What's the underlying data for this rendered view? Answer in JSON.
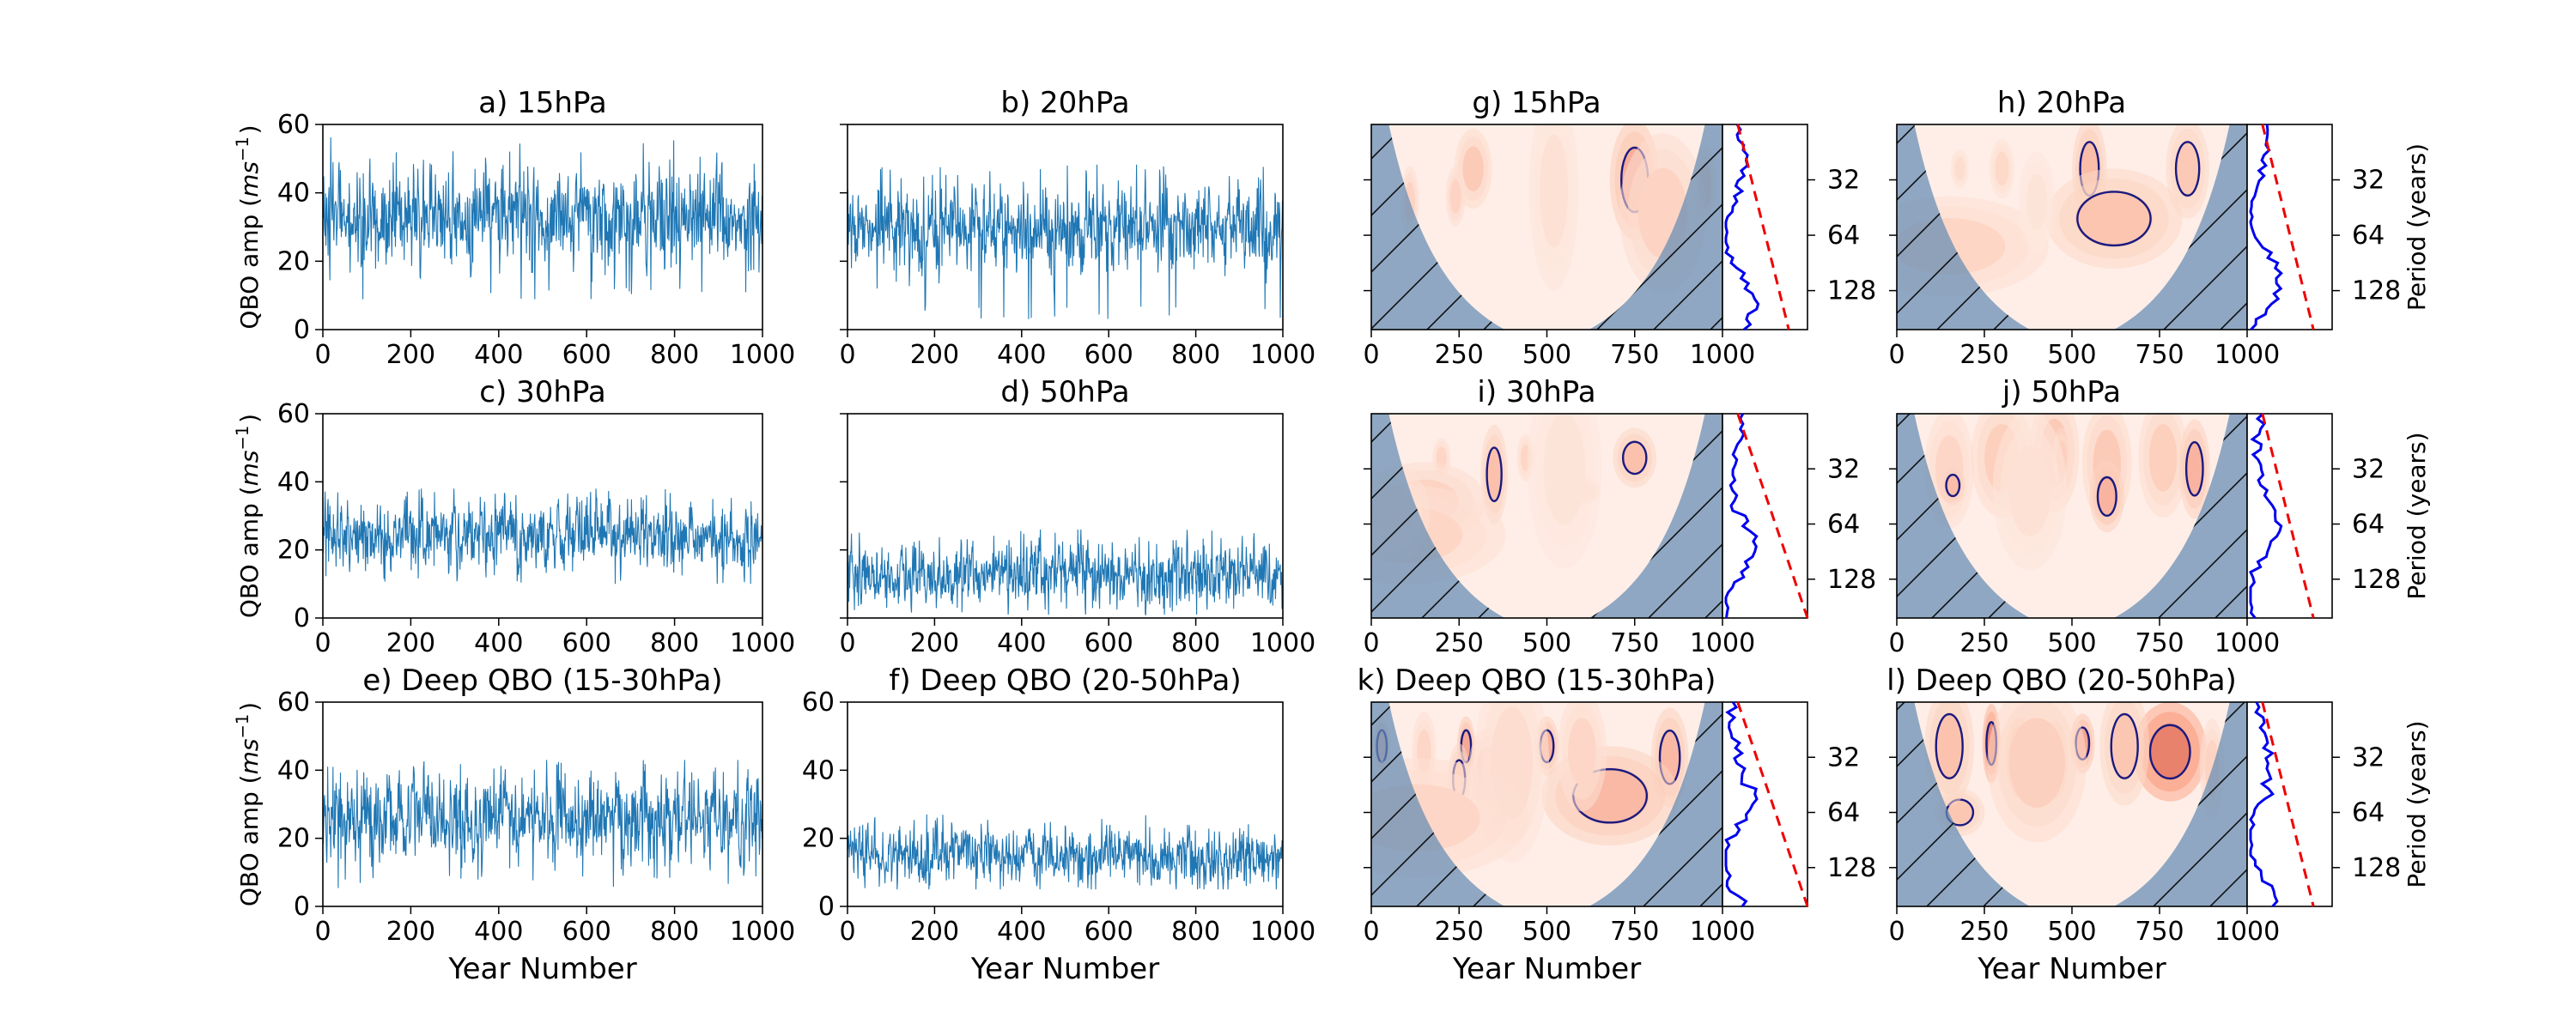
{
  "chart_data": {
    "type": "line",
    "timeseries_panels": [
      {
        "id": "a",
        "title": "a) 15hPa",
        "xlabel": "",
        "ylabel": "QBO amp ($ms^{-1}$)",
        "xlim": [
          0,
          1000
        ],
        "ylim": [
          0,
          60
        ],
        "mean": 33,
        "spread": 7,
        "min": 8,
        "max": 57,
        "color": "#1f77b4"
      },
      {
        "id": "b",
        "title": "b) 20hPa",
        "xlabel": "",
        "ylabel": "",
        "xlim": [
          0,
          1000
        ],
        "ylim": [
          0,
          60
        ],
        "mean": 30,
        "spread": 6,
        "min": 3,
        "max": 49,
        "color": "#1f77b4"
      },
      {
        "id": "c",
        "title": "c) 30hPa",
        "xlabel": "",
        "ylabel": "QBO amp ($ms^{-1}$)",
        "xlim": [
          0,
          1000
        ],
        "ylim": [
          0,
          60
        ],
        "mean": 24,
        "spread": 5,
        "min": 10,
        "max": 38,
        "color": "#1f77b4"
      },
      {
        "id": "d",
        "title": "d) 50hPa",
        "xlabel": "",
        "ylabel": "",
        "xlim": [
          0,
          1000
        ],
        "ylim": [
          0,
          60
        ],
        "mean": 13,
        "spread": 4.5,
        "min": 1,
        "max": 26,
        "color": "#1f77b4"
      },
      {
        "id": "e",
        "title": "e) Deep QBO (15-30hPa)",
        "xlabel": "Year Number",
        "ylabel": "QBO amp ($ms^{-1}$)",
        "xlim": [
          0,
          1000
        ],
        "ylim": [
          0,
          60
        ],
        "mean": 26,
        "spread": 6,
        "min": 5,
        "max": 43,
        "color": "#1f77b4"
      },
      {
        "id": "f",
        "title": "f) Deep QBO (20-50hPa)",
        "xlabel": "Year Number",
        "ylabel": "",
        "xlim": [
          0,
          1000
        ],
        "ylim": [
          0,
          60
        ],
        "mean": 15,
        "spread": 4,
        "min": 5,
        "max": 27,
        "color": "#1f77b4"
      }
    ],
    "wavelet_panels": [
      {
        "id": "g",
        "title": "g) 15hPa",
        "xlabel": "",
        "period_label": "",
        "intensity": 0.55,
        "blobs": [
          [
            110,
            1.6,
            14,
            0.18,
            0.5
          ],
          [
            290,
            1.0,
            30,
            0.2,
            0.6
          ],
          [
            240,
            1.5,
            16,
            0.15,
            0.5
          ],
          [
            750,
            1.2,
            40,
            0.3,
            0.9
          ],
          [
            850,
            1.7,
            14,
            0.15,
            0.45
          ],
          [
            950,
            1.3,
            18,
            0.2,
            0.6
          ],
          [
            830,
            1.8,
            70,
            0.4,
            0.5
          ],
          [
            520,
            1.4,
            40,
            0.5,
            0.3
          ]
        ]
      },
      {
        "id": "h",
        "title": "h) 20hPa",
        "xlabel": "",
        "period_label": "Period (years)",
        "intensity": 0.5,
        "blobs": [
          [
            180,
            1.0,
            10,
            0.1,
            0.4
          ],
          [
            550,
            1.0,
            28,
            0.25,
            0.85
          ],
          [
            830,
            1.0,
            35,
            0.25,
            0.7
          ],
          [
            300,
            1.0,
            20,
            0.15,
            0.45
          ],
          [
            620,
            1.9,
            110,
            0.25,
            0.75
          ],
          [
            150,
            2.4,
            160,
            0.25,
            0.5
          ],
          [
            400,
            1.6,
            30,
            0.25,
            0.25
          ]
        ]
      },
      {
        "id": "i",
        "title": "i) 30hPa",
        "xlabel": "",
        "period_label": "",
        "intensity": 0.5,
        "blobs": [
          [
            200,
            1.0,
            12,
            0.1,
            0.5
          ],
          [
            350,
            1.3,
            22,
            0.25,
            0.8
          ],
          [
            440,
            1.0,
            10,
            0.12,
            0.5
          ],
          [
            750,
            1.0,
            35,
            0.15,
            0.8
          ],
          [
            600,
            1.6,
            30,
            0.07,
            0.55
          ],
          [
            150,
            1.8,
            100,
            0.2,
            0.55
          ],
          [
            100,
            2.4,
            160,
            0.25,
            0.5
          ],
          [
            60,
            2.0,
            60,
            0.25,
            0.45
          ],
          [
            550,
            1.2,
            60,
            0.5,
            0.25
          ]
        ]
      },
      {
        "id": "j",
        "title": "j) 50hPa",
        "xlabel": "",
        "period_label": "Period (years)",
        "intensity": 0.55,
        "blobs": [
          [
            150,
            1.2,
            40,
            0.3,
            0.45
          ],
          [
            300,
            1.0,
            50,
            0.3,
            0.55
          ],
          [
            450,
            0.9,
            40,
            0.3,
            0.6
          ],
          [
            600,
            1.1,
            40,
            0.3,
            0.6
          ],
          [
            760,
            1.0,
            40,
            0.3,
            0.55
          ],
          [
            850,
            1.2,
            25,
            0.25,
            0.85
          ],
          [
            470,
            1.0,
            10,
            0.15,
            0.55
          ],
          [
            160,
            1.5,
            20,
            0.1,
            0.75
          ],
          [
            600,
            1.7,
            28,
            0.18,
            0.85
          ],
          [
            380,
            1.6,
            60,
            0.4,
            0.3
          ]
        ]
      },
      {
        "id": "k",
        "title": "k) Deep QBO (15-30hPa)",
        "xlabel": "Year Number",
        "period_label": "",
        "intensity": 0.55,
        "blobs": [
          [
            30,
            1.0,
            12,
            0.15,
            0.75
          ],
          [
            270,
            1.0,
            10,
            0.15,
            0.95
          ],
          [
            150,
            1.1,
            20,
            0.2,
            0.45
          ],
          [
            500,
            1.0,
            20,
            0.15,
            0.85
          ],
          [
            850,
            1.2,
            30,
            0.25,
            0.8
          ],
          [
            330,
            1.4,
            30,
            0.2,
            0.5
          ],
          [
            250,
            1.6,
            18,
            0.18,
            0.65
          ],
          [
            680,
            1.9,
            110,
            0.25,
            0.8
          ],
          [
            400,
            1.3,
            60,
            0.5,
            0.35
          ],
          [
            130,
            2.3,
            180,
            0.3,
            0.45
          ],
          [
            600,
            1.1,
            40,
            0.3,
            0.45
          ]
        ]
      },
      {
        "id": "l",
        "title": "l) Deep QBO (20-50hPa)",
        "xlabel": "Year Number",
        "period_label": "Period (years)",
        "intensity": 0.6,
        "blobs": [
          [
            270,
            0.95,
            12,
            0.2,
            1.2
          ],
          [
            530,
            0.95,
            20,
            0.15,
            0.9
          ],
          [
            350,
            1.2,
            22,
            0.2,
            1.0
          ],
          [
            450,
            1.25,
            22,
            0.2,
            0.85
          ],
          [
            780,
            1.1,
            60,
            0.25,
            1.35
          ],
          [
            180,
            2.2,
            40,
            0.12,
            0.6
          ],
          [
            150,
            1.0,
            40,
            0.3,
            0.65
          ],
          [
            650,
            1.0,
            40,
            0.3,
            0.6
          ],
          [
            400,
            1.3,
            80,
            0.4,
            0.5
          ],
          [
            900,
            1.4,
            20,
            0.25,
            0.45
          ]
        ]
      }
    ],
    "wavelet_x_ticks": [
      0,
      250,
      500,
      750,
      1000
    ],
    "period_ticks": [
      32,
      64,
      128
    ],
    "timeseries_x_ticks": [
      0,
      200,
      400,
      600,
      800,
      1000
    ],
    "timeseries_y_ticks": [
      0,
      20,
      40,
      60
    ]
  }
}
